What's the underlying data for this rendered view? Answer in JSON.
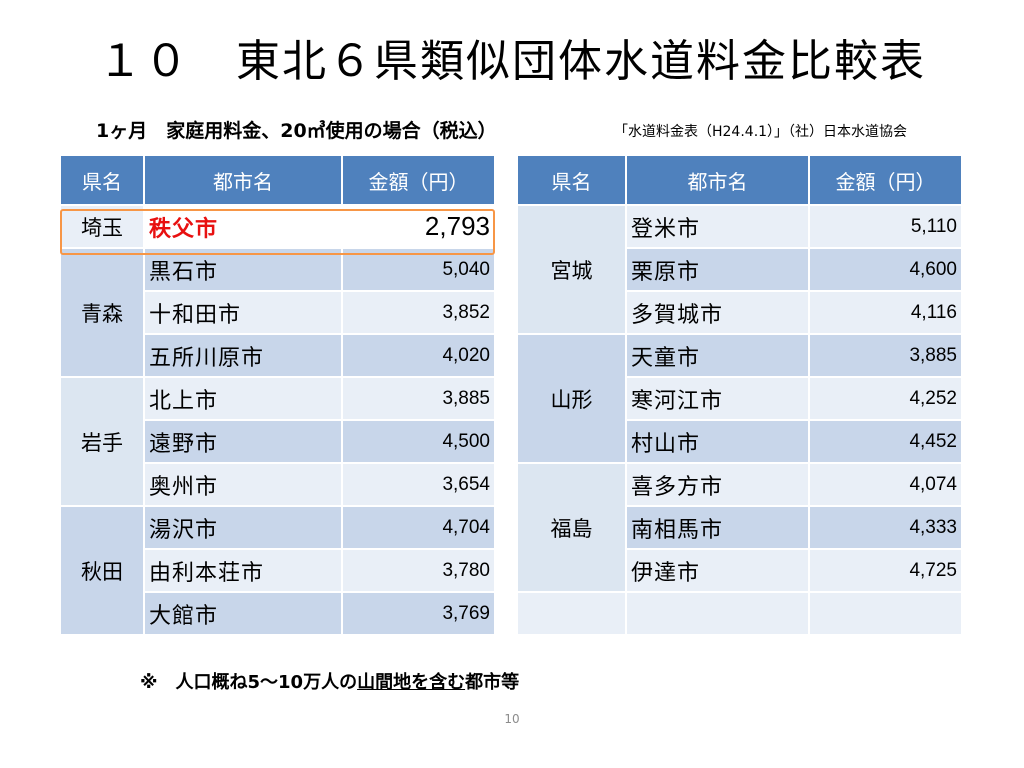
{
  "title": "１０　東北６県類似団体水道料金比較表",
  "subtitle": "1ヶ月　家庭用料金、20㎥使用の場合（税込）",
  "source": "「水道料金表（H24.4.1）」（社）日本水道協会",
  "headers": {
    "pref": "県名",
    "city": "都市名",
    "amount": "金額（円）"
  },
  "left_table": {
    "highlight": {
      "pref": "埼玉",
      "city": "秩父市",
      "amount": "2,793"
    },
    "groups": [
      {
        "pref": "青森",
        "rows": [
          {
            "city": "黒石市",
            "amount": "5,040"
          },
          {
            "city": "十和田市",
            "amount": "3,852"
          },
          {
            "city": "五所川原市",
            "amount": "4,020"
          }
        ]
      },
      {
        "pref": "岩手",
        "rows": [
          {
            "city": "北上市",
            "amount": "3,885"
          },
          {
            "city": "遠野市",
            "amount": "4,500"
          },
          {
            "city": "奥州市",
            "amount": "3,654"
          }
        ]
      },
      {
        "pref": "秋田",
        "rows": [
          {
            "city": "湯沢市",
            "amount": "4,704"
          },
          {
            "city": "由利本荘市",
            "amount": "3,780"
          },
          {
            "city": "大館市",
            "amount": "3,769"
          }
        ]
      }
    ]
  },
  "right_table": {
    "groups": [
      {
        "pref": "宮城",
        "rows": [
          {
            "city": "登米市",
            "amount": "5,110"
          },
          {
            "city": "栗原市",
            "amount": "4,600"
          },
          {
            "city": "多賀城市",
            "amount": "4,116"
          }
        ]
      },
      {
        "pref": "山形",
        "rows": [
          {
            "city": "天童市",
            "amount": "3,885"
          },
          {
            "city": "寒河江市",
            "amount": "4,252"
          },
          {
            "city": "村山市",
            "amount": "4,452"
          }
        ]
      },
      {
        "pref": "福島",
        "rows": [
          {
            "city": "喜多方市",
            "amount": "4,074"
          },
          {
            "city": "南相馬市",
            "amount": "4,333"
          },
          {
            "city": "伊達市",
            "amount": "4,725"
          }
        ]
      }
    ]
  },
  "note": {
    "prefix": "※　人口概ね5～10万人の",
    "underlined": "山間地を含む",
    "suffix": "都市等"
  },
  "page_number": "10",
  "colors": {
    "header_bg": "#4f81bd",
    "row_dark": "#c8d6ea",
    "row_light": "#e9eff7",
    "highlight_border": "#f79646",
    "highlight_text": "#e81010"
  }
}
